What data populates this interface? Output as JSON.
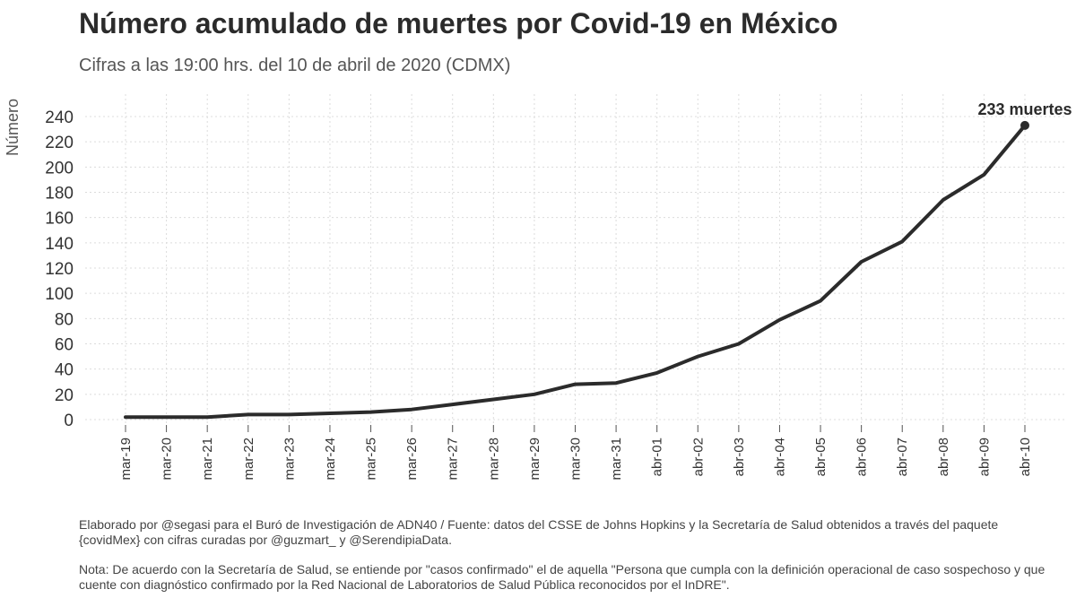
{
  "header": {
    "title": "Número acumulado de muertes por Covid-19 en México",
    "subtitle": "Cifras a las 19:00 hrs. del 10 de abril de 2020 (CDMX)"
  },
  "footer": {
    "credit": "Elaborado por @segasi para el Buró de Investigación de ADN40 / Fuente: datos del CSSE de Johns Hopkins y la Secretaría de Salud obtenidos a través del paquete {covidMex} con cifras curadas por @guzmart_ y @SerendipiaData.",
    "note": "Nota: De acuerdo con la Secretaría de Salud, se entiende por \"casos confirmado\" el de aquella \"Persona que cumpla con la definición operacional de caso sospechoso y que cuente con diagnóstico confirmado por la Red Nacional de Laboratorios de Salud Pública reconocidos por el InDRE\"."
  },
  "chart_data": {
    "type": "line",
    "title": "Número acumulado de muertes por Covid-19 en México",
    "subtitle": "Cifras a las 19:00 hrs. del 10 de abril de 2020 (CDMX)",
    "xlabel": "",
    "ylabel": "Número",
    "ylim": [
      0,
      240
    ],
    "yticks": [
      0,
      20,
      40,
      60,
      80,
      100,
      120,
      140,
      160,
      180,
      200,
      220,
      240
    ],
    "grid": true,
    "line_color": "#2b2b2b",
    "categories": [
      "mar-19",
      "mar-20",
      "mar-21",
      "mar-22",
      "mar-23",
      "mar-24",
      "mar-25",
      "mar-26",
      "mar-27",
      "mar-28",
      "mar-29",
      "mar-30",
      "mar-31",
      "abr-01",
      "abr-02",
      "abr-03",
      "abr-04",
      "abr-05",
      "abr-06",
      "abr-07",
      "abr-08",
      "abr-09",
      "abr-10"
    ],
    "series": [
      {
        "values": [
          2,
          2,
          2,
          4,
          4,
          5,
          6,
          8,
          12,
          16,
          20,
          28,
          29,
          37,
          50,
          60,
          79,
          94,
          125,
          141,
          174,
          194,
          233
        ]
      }
    ],
    "annotation": {
      "label": "233 muertes",
      "category": "abr-10",
      "value": 233
    }
  }
}
